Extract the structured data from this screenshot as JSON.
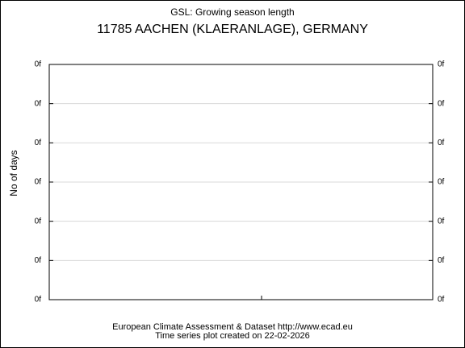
{
  "chart_data": {
    "type": "line",
    "title": "GSL: Growing season length",
    "subtitle": "11785 AACHEN (KLAERANLAGE), GERMANY",
    "y_label": "No of days",
    "source": "European Climate Assessment & Dataset  http://www.ecad.eu",
    "note": "Time series plot created on 22-02-2026",
    "series": [],
    "ylim": [
      0,
      6
    ],
    "yticks": [
      {
        "value": 0,
        "label": "0f"
      },
      {
        "value": 1,
        "label": "0f"
      },
      {
        "value": 2,
        "label": "0f"
      },
      {
        "value": 3,
        "label": "0f"
      },
      {
        "value": 4,
        "label": "0f"
      },
      {
        "value": 5,
        "label": "0f"
      },
      {
        "value": 6,
        "label": "0f"
      }
    ],
    "grid": true
  }
}
